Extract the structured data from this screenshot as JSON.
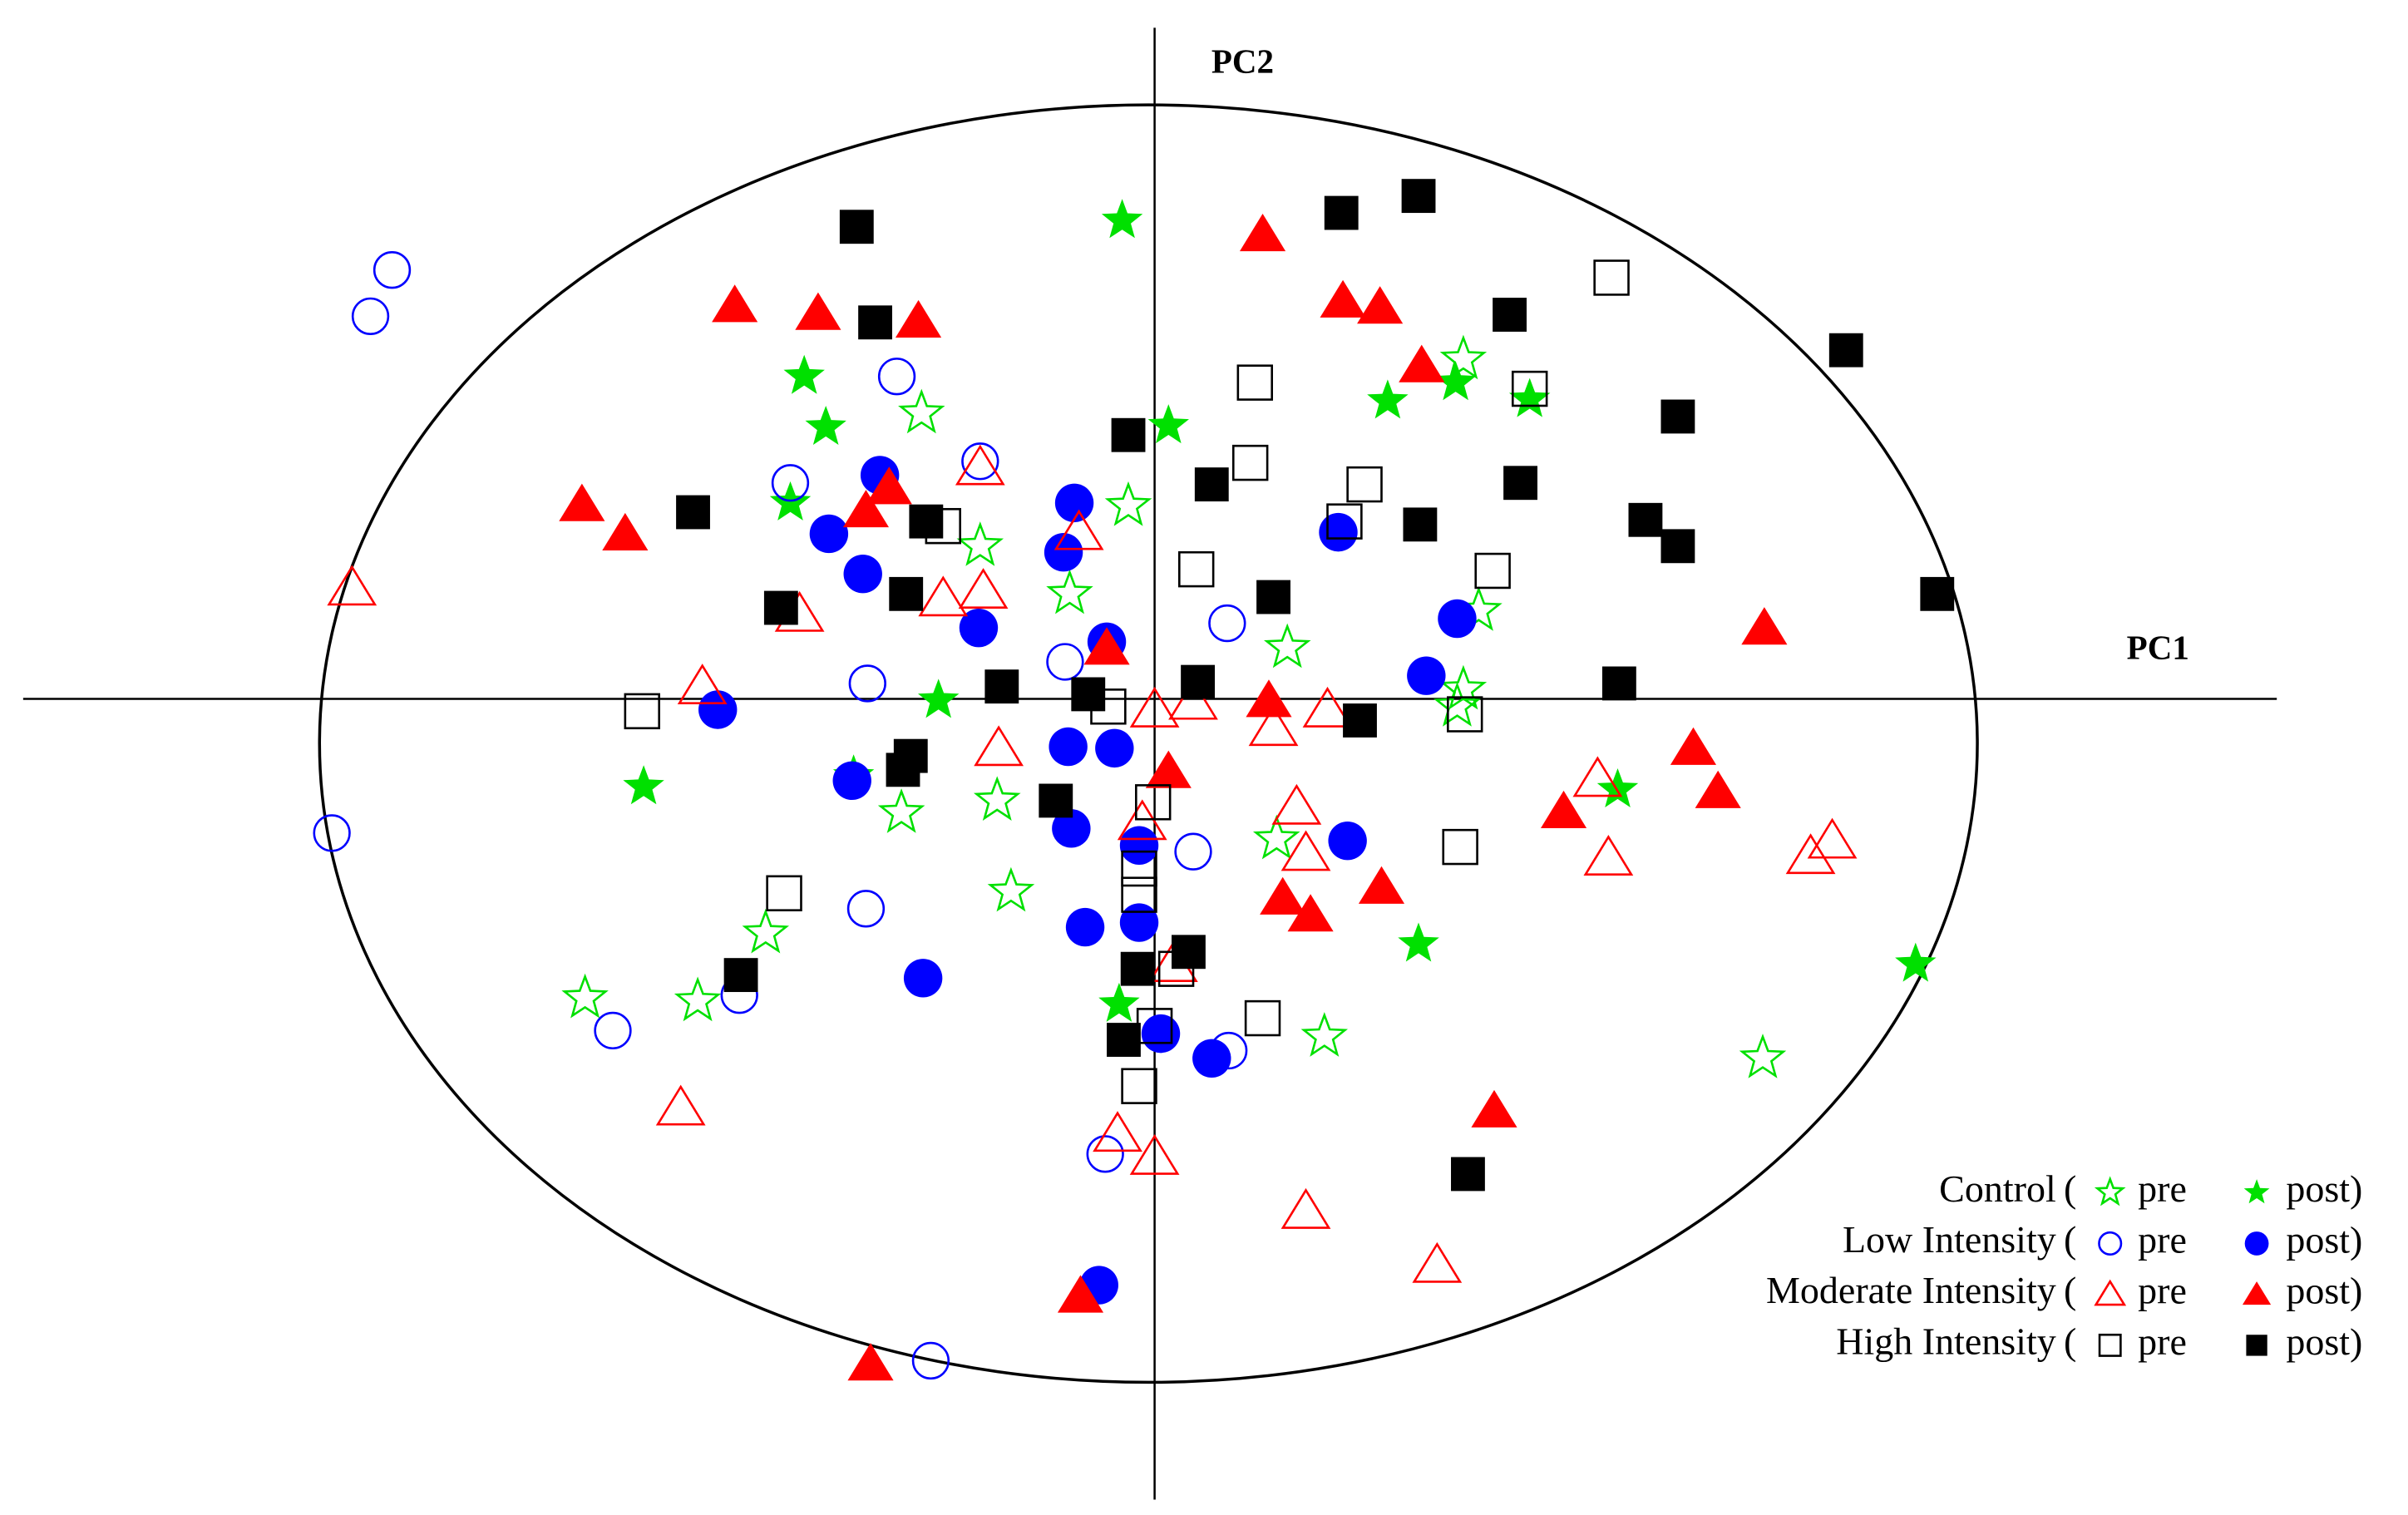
{
  "chart_data": {
    "type": "scatter",
    "xlabel": "PC1",
    "ylabel": "PC2",
    "xlim": [
      -7.33,
      7.27
    ],
    "ylim": [
      -5.19,
      4.35
    ],
    "legend_loc": "lower right",
    "legend_brackets": [
      "(",
      ")"
    ],
    "groups": [
      {
        "label": "Control",
        "series": [
          {
            "name": "pre",
            "marker": "star",
            "filled": false,
            "color": "#00e000",
            "x": [
              -1.51,
              -1.13,
              -0.17,
              -0.55,
              2.0,
              2.1,
              0.86,
              2.0,
              1.96,
              -1.64,
              -1.02,
              0.79,
              -0.93,
              -2.52,
              -3.69,
              -2.96,
              1.1,
              3.94
            ],
            "y": [
              1.85,
              0.99,
              1.25,
              0.68,
              2.2,
              0.57,
              0.33,
              0.06,
              -0.05,
              -0.74,
              -0.66,
              -0.91,
              -1.25,
              -1.52,
              -1.94,
              -1.96,
              -2.19,
              -2.33
            ]
          },
          {
            "name": "post",
            "marker": "star",
            "filled": true,
            "color": "#00e000",
            "x": [
              -0.21,
              -2.27,
              -2.13,
              -2.36,
              0.09,
              1.51,
              1.95,
              2.43,
              -1.4,
              -3.31,
              -1.95,
              3.0,
              1.71,
              4.93,
              -0.23
            ],
            "y": [
              3.1,
              2.09,
              1.76,
              1.27,
              1.77,
              1.93,
              2.05,
              1.94,
              -0.01,
              -0.57,
              -0.5,
              -0.59,
              -1.59,
              -1.72,
              -1.98
            ]
          }
        ]
      },
      {
        "label": "Low Intensity",
        "series": [
          {
            "name": "pre",
            "marker": "circle",
            "filled": false,
            "color": "#0000ff",
            "x": [
              -4.94,
              -5.08,
              -1.67,
              -2.36,
              -1.13,
              0.47,
              -0.58,
              -1.86,
              -5.33,
              0.25,
              -1.87,
              -2.69,
              -3.51,
              0.48,
              -0.32,
              -1.45
            ],
            "y": [
              2.78,
              2.48,
              2.09,
              1.4,
              1.54,
              0.49,
              0.24,
              0.1,
              -0.87,
              -0.99,
              -1.36,
              -1.92,
              -2.15,
              -2.28,
              -2.95,
              -4.29
            ]
          },
          {
            "name": "post",
            "marker": "circle",
            "filled": true,
            "color": "#0000ff",
            "x": [
              -1.78,
              -0.52,
              -2.11,
              -0.59,
              1.19,
              -1.89,
              -1.14,
              -0.31,
              1.96,
              1.76,
              -2.83,
              -1.96,
              -0.56,
              -0.26,
              -0.54,
              -0.1,
              1.25,
              -0.45,
              -0.1,
              -1.5,
              0.04,
              0.37,
              -0.36
            ],
            "y": [
              1.45,
              1.27,
              1.07,
              0.95,
              1.08,
              0.81,
              0.46,
              0.37,
              0.52,
              0.15,
              -0.07,
              -0.53,
              -0.31,
              -0.32,
              -0.84,
              -0.95,
              -0.92,
              -1.48,
              -1.45,
              -1.81,
              -2.17,
              -2.33,
              -3.8
            ]
          }
        ]
      },
      {
        "label": "Moderate Intensity",
        "series": [
          {
            "name": "pre",
            "marker": "triangle",
            "filled": false,
            "color": "#ff0000",
            "x": [
              -5.2,
              -1.13,
              -0.49,
              -2.3,
              -1.37,
              -1.11,
              -2.93,
              0.0,
              0.25,
              1.12,
              0.77,
              -1.01,
              -0.08,
              0.92,
              0.98,
              2.87,
              2.94,
              4.25,
              4.39,
              0.12,
              -3.07,
              -0.24,
              0.0,
              0.98,
              1.83
            ],
            "y": [
              0.72,
              1.5,
              1.08,
              0.55,
              0.65,
              0.7,
              0.08,
              -0.07,
              -0.02,
              -0.07,
              -0.19,
              -0.32,
              -0.8,
              -0.7,
              -1.0,
              -0.52,
              -1.03,
              -1.02,
              -0.92,
              -1.72,
              -2.65,
              -2.82,
              -2.97,
              -3.32,
              -3.67
            ]
          },
          {
            "name": "post",
            "marker": "triangle",
            "filled": true,
            "color": "#ff0000",
            "x": [
              0.7,
              -2.72,
              -2.18,
              -1.53,
              1.22,
              1.46,
              1.73,
              -1.72,
              -1.87,
              -3.71,
              -3.43,
              -0.31,
              0.74,
              0.09,
              3.95,
              3.49,
              3.65,
              2.65,
              1.47,
              0.83,
              1.01,
              2.2,
              -0.48,
              -1.84
            ],
            "y": [
              3.01,
              2.55,
              2.5,
              2.45,
              2.58,
              2.54,
              2.16,
              1.37,
              1.22,
              1.26,
              1.07,
              0.33,
              -0.01,
              -0.47,
              0.46,
              -0.32,
              -0.6,
              -0.73,
              -1.22,
              -1.29,
              -1.4,
              -2.67,
              -3.87,
              -4.31
            ]
          }
        ]
      },
      {
        "label": "High Intensity",
        "series": [
          {
            "name": "pre",
            "marker": "square",
            "filled": false,
            "color": "#000000",
            "x": [
              2.96,
              0.65,
              2.43,
              0.62,
              1.36,
              1.23,
              -1.37,
              0.27,
              2.19,
              -3.32,
              -0.3,
              2.01,
              -0.01,
              1.98,
              -0.1,
              -2.4,
              -0.1,
              0.14,
              0.0,
              0.7,
              -0.1
            ],
            "y": [
              2.73,
              2.05,
              2.01,
              1.53,
              1.39,
              1.15,
              1.12,
              0.84,
              0.83,
              -0.08,
              -0.05,
              -0.1,
              -0.67,
              -0.96,
              -1.1,
              -1.26,
              -1.27,
              -1.75,
              -2.12,
              -2.07,
              -2.51
            ]
          },
          {
            "name": "post",
            "marker": "square",
            "filled": true,
            "color": "#000000",
            "x": [
              -1.93,
              1.21,
              1.71,
              -1.81,
              2.3,
              4.48,
              -0.17,
              3.39,
              0.37,
              2.37,
              -2.99,
              -1.48,
              1.72,
              3.18,
              3.39,
              -1.61,
              -2.42,
              0.77,
              5.07,
              -0.99,
              -0.43,
              0.28,
              1.33,
              3.01,
              -1.58,
              -1.63,
              -0.64,
              0.22,
              -2.68,
              -0.11,
              -0.2,
              2.03
            ],
            "y": [
              3.06,
              3.15,
              3.26,
              2.44,
              2.49,
              2.26,
              1.71,
              1.83,
              1.39,
              1.4,
              1.21,
              1.15,
              1.13,
              1.16,
              0.99,
              0.68,
              0.59,
              0.66,
              0.68,
              0.08,
              0.03,
              0.11,
              -0.14,
              0.1,
              -0.37,
              -0.46,
              -0.66,
              -1.64,
              -1.79,
              -1.75,
              -2.21,
              -3.08
            ]
          }
        ]
      }
    ]
  }
}
